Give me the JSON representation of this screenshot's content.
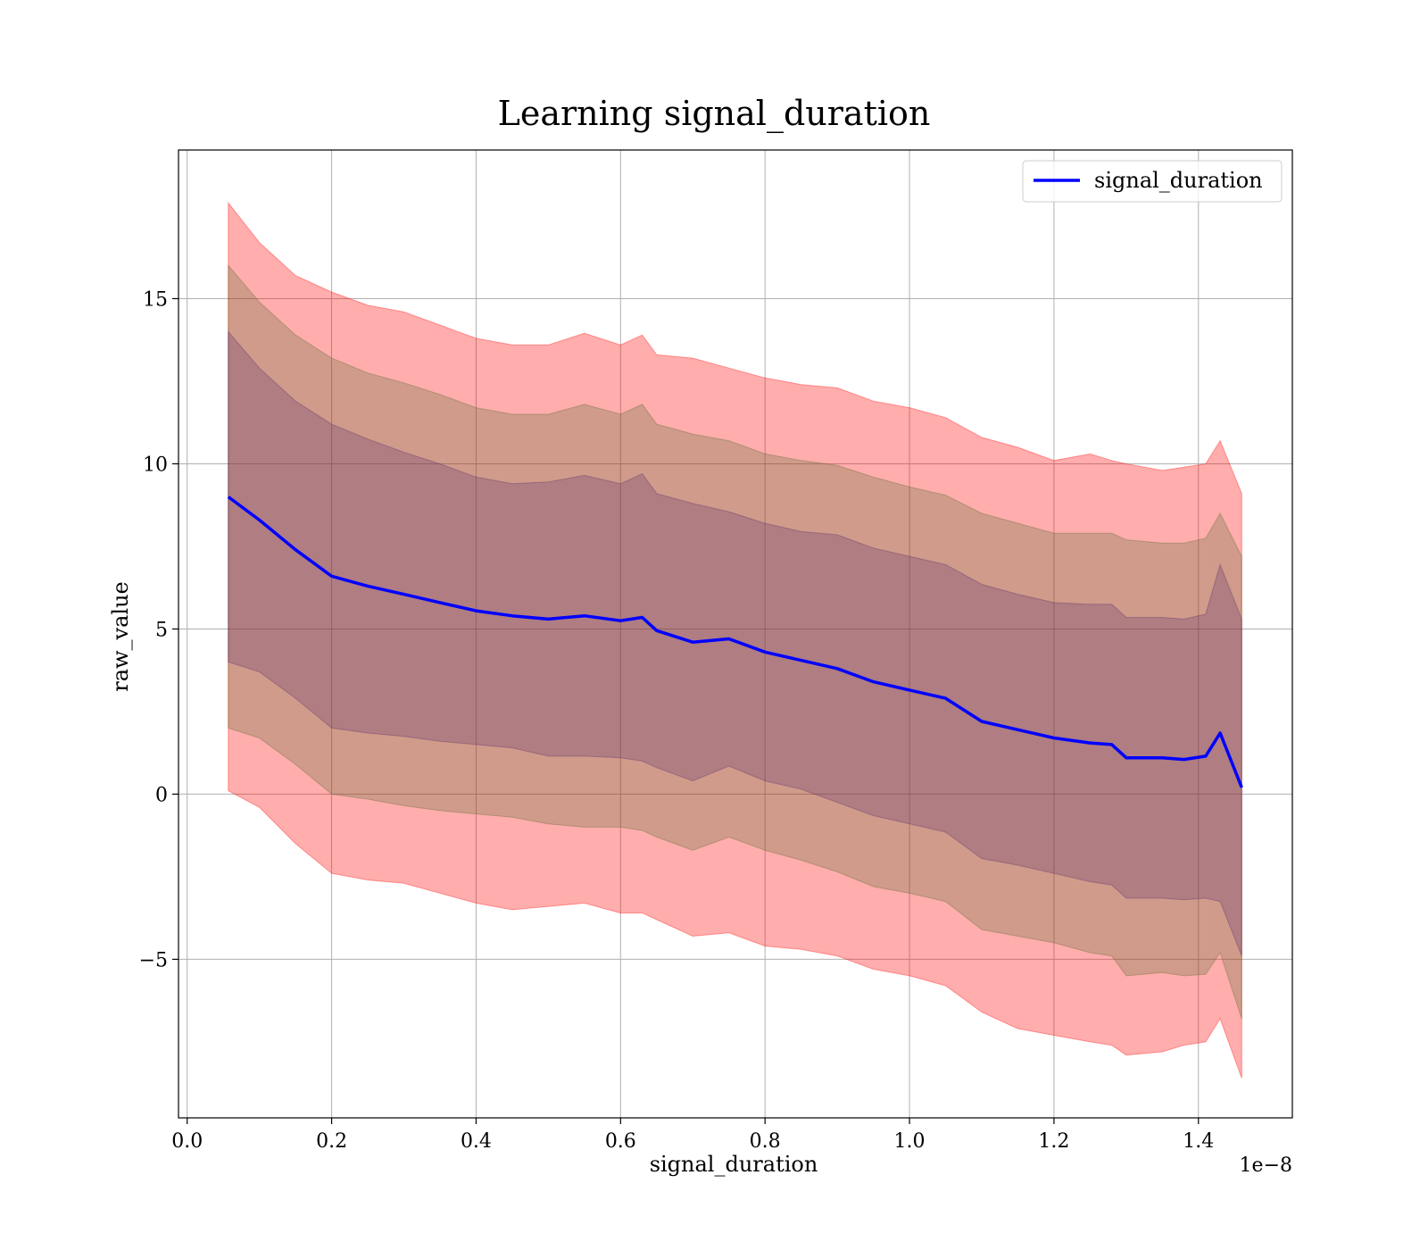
{
  "chart_data": {
    "type": "line",
    "title": "Learning signal_duration",
    "xlabel": "signal_duration",
    "ylabel": "raw_value",
    "x_offset_label": "1e−8",
    "xlim": [
      -0.012,
      1.53
    ],
    "ylim": [
      -9.8,
      19.5
    ],
    "grid": true,
    "legend_position": "top-right",
    "x_ticks": [
      0.0,
      0.2,
      0.4,
      0.6,
      0.8,
      1.0,
      1.2,
      1.4
    ],
    "x_tick_labels": [
      "0.0",
      "0.2",
      "0.4",
      "0.6",
      "0.8",
      "1.0",
      "1.2",
      "1.4"
    ],
    "y_ticks": [
      -5,
      0,
      5,
      10,
      15
    ],
    "y_tick_labels": [
      "−5",
      "0",
      "5",
      "10",
      "15"
    ],
    "x": [
      0.057,
      0.1,
      0.15,
      0.2,
      0.25,
      0.3,
      0.35,
      0.4,
      0.45,
      0.5,
      0.55,
      0.6,
      0.63,
      0.65,
      0.7,
      0.75,
      0.8,
      0.85,
      0.9,
      0.95,
      1.0,
      1.05,
      1.1,
      1.15,
      1.2,
      1.25,
      1.28,
      1.3,
      1.35,
      1.38,
      1.41,
      1.43,
      1.46
    ],
    "series": [
      {
        "name": "signal_duration",
        "color": "#0000ff",
        "values": [
          9.0,
          8.3,
          7.4,
          6.6,
          6.3,
          6.05,
          5.8,
          5.55,
          5.4,
          5.3,
          5.4,
          5.25,
          5.35,
          4.95,
          4.6,
          4.7,
          4.3,
          4.05,
          3.8,
          3.4,
          3.15,
          2.9,
          2.2,
          1.95,
          1.7,
          1.55,
          1.5,
          1.1,
          1.1,
          1.05,
          1.15,
          1.85,
          0.2
        ]
      }
    ],
    "bands": [
      {
        "color": "#ff0000",
        "opacity": 0.32,
        "sigma": 3,
        "upper": [
          17.9,
          16.7,
          15.7,
          15.2,
          14.8,
          14.6,
          14.2,
          13.8,
          13.6,
          13.6,
          13.95,
          13.6,
          13.9,
          13.3,
          13.2,
          12.9,
          12.6,
          12.4,
          12.3,
          11.9,
          11.7,
          11.4,
          10.8,
          10.5,
          10.1,
          10.3,
          10.1,
          10.0,
          9.8,
          9.9,
          10.0,
          10.7,
          9.1
        ],
        "lower": [
          0.1,
          -0.4,
          -1.5,
          -2.4,
          -2.6,
          -2.7,
          -3.0,
          -3.3,
          -3.5,
          -3.4,
          -3.3,
          -3.6,
          -3.6,
          -3.8,
          -4.3,
          -4.2,
          -4.6,
          -4.7,
          -4.9,
          -5.3,
          -5.5,
          -5.8,
          -6.6,
          -7.1,
          -7.3,
          -7.5,
          -7.6,
          -7.9,
          -7.8,
          -7.6,
          -7.5,
          -6.8,
          -8.6
        ]
      },
      {
        "color": "#556b2f",
        "opacity": 0.28,
        "sigma": 2,
        "upper": [
          16.0,
          14.9,
          13.9,
          13.2,
          12.75,
          12.45,
          12.1,
          11.7,
          11.5,
          11.5,
          11.8,
          11.5,
          11.8,
          11.2,
          10.9,
          10.7,
          10.3,
          10.1,
          9.95,
          9.6,
          9.3,
          9.05,
          8.5,
          8.2,
          7.9,
          7.9,
          7.9,
          7.7,
          7.6,
          7.6,
          7.75,
          8.5,
          7.2
        ]
      },
      {
        "color": "#5a2d6e",
        "opacity": 0.28,
        "sigma": 1,
        "upper": [
          14.0,
          12.9,
          11.9,
          11.2,
          10.75,
          10.35,
          10.0,
          9.6,
          9.4,
          9.45,
          9.65,
          9.4,
          9.7,
          9.1,
          8.8,
          8.55,
          8.2,
          7.95,
          7.85,
          7.45,
          7.2,
          6.95,
          6.35,
          6.05,
          5.8,
          5.75,
          5.75,
          5.35,
          5.35,
          5.3,
          5.45,
          6.95,
          5.3
        ]
      }
    ]
  }
}
